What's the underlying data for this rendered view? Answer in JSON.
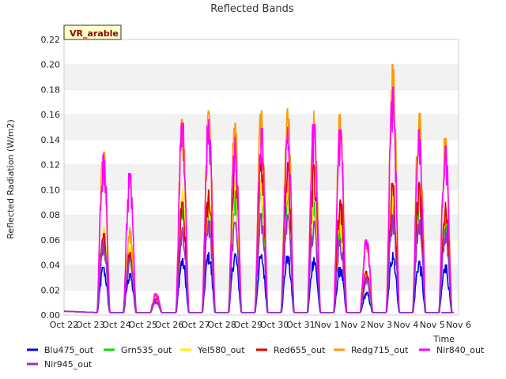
{
  "chart_data": {
    "type": "line",
    "title": "Reflected Bands",
    "xlabel": "Time",
    "ylabel": "Reflected Radiation (W/m2)",
    "badge": "VR_arable",
    "ylim": [
      0.0,
      0.22
    ],
    "yticks": [
      "0.00",
      "0.02",
      "0.04",
      "0.06",
      "0.08",
      "0.10",
      "0.12",
      "0.14",
      "0.16",
      "0.18",
      "0.20",
      "0.22"
    ],
    "xticks": [
      "Oct 22",
      "Oct 23",
      "Oct 24",
      "Oct 25",
      "Oct 26",
      "Oct 27",
      "Oct 28",
      "Oct 29",
      "Oct 30",
      "Oct 31",
      "Nov 1",
      "Nov 2",
      "Nov 3",
      "Nov 4",
      "Nov 5",
      "Nov 6"
    ],
    "xlim_days": [
      0,
      15
    ],
    "grid": "horizontal bands",
    "legend_position": "bottom",
    "days": [
      "Oct 23",
      "Oct 24",
      "Oct 25",
      "Oct 26",
      "Oct 27",
      "Oct 28",
      "Oct 29",
      "Oct 30",
      "Oct 31",
      "Nov 1",
      "Nov 2",
      "Nov 3",
      "Nov 4",
      "Nov 5"
    ],
    "series": [
      {
        "name": "Blu475_out",
        "color": "#0000ee",
        "daily_peak": [
          0.038,
          0.033,
          0.012,
          0.045,
          0.05,
          0.049,
          0.048,
          0.047,
          0.046,
          0.038,
          0.018,
          0.05,
          0.043,
          0.04
        ]
      },
      {
        "name": "Grn535_out",
        "color": "#00dd00",
        "daily_peak": [
          0.06,
          0.05,
          0.013,
          0.09,
          0.09,
          0.099,
          0.099,
          0.097,
          0.09,
          0.07,
          0.03,
          0.09,
          0.09,
          0.075
        ]
      },
      {
        "name": "Yel580_out",
        "color": "#ffee00",
        "daily_peak": [
          0.07,
          0.055,
          0.014,
          0.1,
          0.1,
          0.107,
          0.108,
          0.105,
          0.1,
          0.08,
          0.035,
          0.1,
          0.1,
          0.085
        ]
      },
      {
        "name": "Red655_out",
        "color": "#dd0000",
        "daily_peak": [
          0.065,
          0.05,
          0.013,
          0.09,
          0.1,
          0.128,
          0.126,
          0.122,
          0.12,
          0.092,
          0.035,
          0.105,
          0.106,
          0.09
        ]
      },
      {
        "name": "Redg715_out",
        "color": "#ff9900",
        "daily_peak": [
          0.13,
          0.07,
          0.017,
          0.156,
          0.163,
          0.153,
          0.163,
          0.165,
          0.163,
          0.16,
          0.06,
          0.2,
          0.161,
          0.141
        ]
      },
      {
        "name": "Nir840_out",
        "color": "#ff00ff",
        "daily_peak": [
          0.128,
          0.113,
          0.017,
          0.153,
          0.156,
          0.142,
          0.149,
          0.15,
          0.152,
          0.148,
          0.06,
          0.182,
          0.148,
          0.135
        ]
      },
      {
        "name": "Nir945_out",
        "color": "#9933cc",
        "daily_peak": [
          0.06,
          0.045,
          0.011,
          0.07,
          0.075,
          0.074,
          0.081,
          0.08,
          0.075,
          0.06,
          0.03,
          0.08,
          0.076,
          0.07
        ]
      }
    ]
  }
}
